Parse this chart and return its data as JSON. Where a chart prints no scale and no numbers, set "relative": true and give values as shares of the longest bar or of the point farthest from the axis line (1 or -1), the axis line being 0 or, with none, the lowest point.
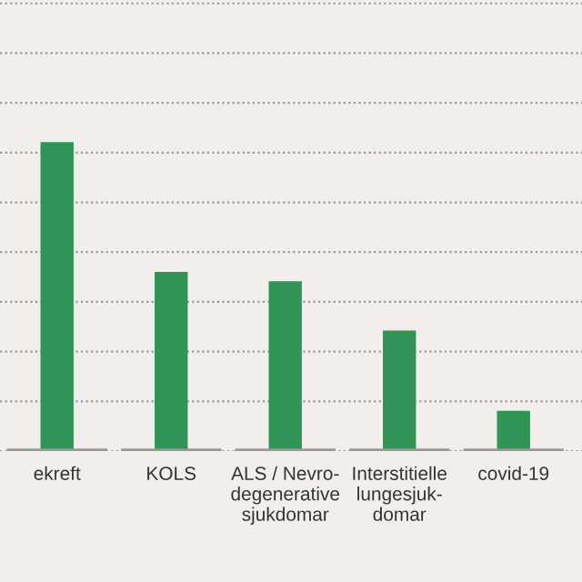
{
  "chart_data": {
    "type": "bar",
    "relative": true,
    "categories": [
      "ekreft",
      "KOLS",
      "ALS / Nevro-\ndegenerative\nsjukdomar",
      "Interstitielle\nlungesjuk-\ndomar",
      "covid-19"
    ],
    "values": [
      1,
      0.58,
      0.55,
      0.39,
      0.13
    ],
    "color": "#2f9455",
    "grid": "y"
  }
}
